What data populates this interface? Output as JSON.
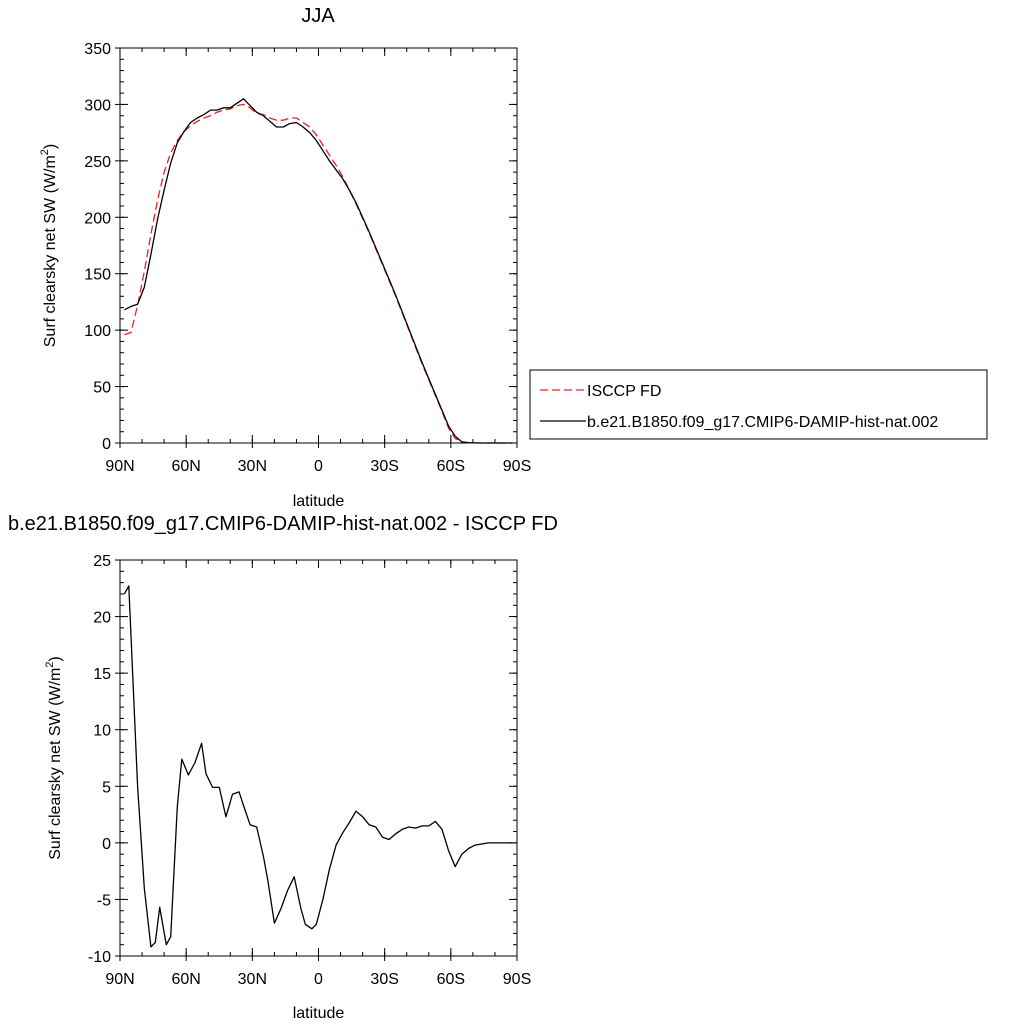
{
  "chart_data": [
    {
      "type": "line",
      "title": "JJA",
      "xlabel": "latitude",
      "ylabel": "Surf clearsky net SW (W/m",
      "ylabel_sup": "2",
      "ylabel_close": ")",
      "xlim": [
        90,
        -90
      ],
      "ylim": [
        0,
        350
      ],
      "xticks": [
        90,
        60,
        30,
        0,
        -30,
        -60,
        -90
      ],
      "xtick_labels": [
        "90N",
        "60N",
        "30N",
        "0",
        "30S",
        "60S",
        "90S"
      ],
      "yticks": [
        0,
        50,
        100,
        150,
        200,
        250,
        300,
        350
      ],
      "ytick_labels": [
        "0",
        "50",
        "100",
        "150",
        "200",
        "250",
        "300",
        "350"
      ],
      "legend_position": "right",
      "series": [
        {
          "name": "ISCCP FD",
          "color": "#e8202a",
          "dash": "dashed",
          "x": [
            88,
            85,
            82,
            79,
            76,
            73,
            70,
            67,
            64,
            61,
            58,
            55,
            52,
            49,
            46,
            43,
            40,
            37,
            34,
            31,
            28,
            25,
            22,
            19,
            16,
            13,
            10,
            7,
            4,
            1,
            -2,
            -5,
            -8,
            -11,
            -14,
            -17,
            -20,
            -23,
            -26,
            -29,
            -32,
            -35,
            -38,
            -41,
            -44,
            -47,
            -50,
            -53,
            -56,
            -59,
            -62,
            -65,
            -68,
            -71,
            -74,
            -77,
            -80,
            -83,
            -86,
            -88
          ],
          "y": [
            96,
            98,
            122,
            152,
            185,
            215,
            240,
            257,
            268,
            276,
            281,
            285,
            288,
            290,
            293,
            295,
            296,
            299,
            300,
            297,
            292,
            291,
            288,
            286,
            286,
            288,
            288,
            284,
            280,
            273,
            264,
            255,
            246,
            236,
            224,
            212,
            199,
            186,
            172,
            158,
            144,
            130,
            115,
            100,
            85,
            70,
            56,
            42,
            28,
            13,
            4,
            1,
            0.3,
            0.1,
            0,
            0,
            0,
            0,
            0,
            0
          ]
        },
        {
          "name": "b.e21.B1850.f09_g17.CMIP6-DAMIP-hist-nat.002",
          "color": "#000000",
          "dash": "solid",
          "x": [
            88,
            85,
            82,
            79,
            76,
            73,
            70,
            67,
            64,
            61,
            58,
            55,
            52,
            49,
            46,
            43,
            40,
            37,
            34,
            31,
            28,
            25,
            22,
            19,
            16,
            13,
            10,
            7,
            4,
            1,
            -2,
            -5,
            -8,
            -11,
            -14,
            -17,
            -20,
            -23,
            -26,
            -29,
            -32,
            -35,
            -38,
            -41,
            -44,
            -47,
            -50,
            -53,
            -56,
            -59,
            -62,
            -65,
            -68,
            -71,
            -74,
            -77,
            -80,
            -83,
            -86,
            -88
          ],
          "y": [
            118,
            121,
            123,
            138,
            167,
            198,
            224,
            248,
            266,
            276,
            284,
            288,
            291,
            295,
            295,
            297,
            297,
            301,
            305,
            299,
            293,
            290,
            285,
            280,
            280,
            283,
            284,
            280,
            275,
            268,
            259,
            250,
            242,
            234,
            224,
            213,
            200,
            187,
            173,
            159,
            145,
            131,
            116,
            101,
            86,
            71,
            57,
            43,
            29,
            15,
            6,
            1,
            0.3,
            0.1,
            0,
            0,
            0,
            0,
            0,
            0
          ]
        }
      ]
    },
    {
      "type": "line",
      "title": "b.e21.B1850.f09_g17.CMIP6-DAMIP-hist-nat.002 - ISCCP FD",
      "xlabel": "latitude",
      "ylabel": "Surf clearsky net SW (W/m",
      "ylabel_sup": "2",
      "ylabel_close": ")",
      "xlim": [
        90,
        -90
      ],
      "ylim": [
        -10,
        25
      ],
      "xticks": [
        90,
        60,
        30,
        0,
        -30,
        -60,
        -90
      ],
      "xtick_labels": [
        "90N",
        "60N",
        "30N",
        "0",
        "30S",
        "60S",
        "90S"
      ],
      "yticks": [
        -10,
        -5,
        0,
        5,
        10,
        15,
        20,
        25
      ],
      "ytick_labels": [
        "-10",
        "-5",
        "0",
        "5",
        "10",
        "15",
        "20",
        "25"
      ],
      "series": [
        {
          "color": "#000000",
          "dash": "solid",
          "x": [
            88,
            86,
            82,
            79,
            76,
            74,
            72,
            69,
            67,
            64,
            62,
            59,
            56,
            53,
            51,
            48,
            45,
            42,
            39,
            36,
            34,
            31,
            28,
            25,
            23,
            20,
            17,
            14,
            11,
            8,
            6,
            3,
            1,
            -2,
            -5,
            -8,
            -11,
            -14,
            -17,
            -20,
            -23,
            -26,
            -29,
            -32,
            -35,
            -38,
            -41,
            -44,
            -47,
            -50,
            -53,
            -56,
            -59,
            -62,
            -65,
            -68,
            -71,
            -74,
            -77,
            -80,
            -83,
            -86,
            -88
          ],
          "y": [
            22,
            22.7,
            5,
            -4,
            -9.2,
            -8.8,
            -5.7,
            -9,
            -8.3,
            3.2,
            7.4,
            6,
            7.1,
            8.8,
            6.1,
            4.9,
            4.9,
            2.3,
            4.3,
            4.5,
            3.3,
            1.6,
            1.4,
            -1.2,
            -3.3,
            -7.1,
            -5.8,
            -4.2,
            -3,
            -5.8,
            -7.2,
            -7.6,
            -7.2,
            -5,
            -2.3,
            -0.2,
            0.9,
            1.8,
            2.8,
            2.3,
            1.6,
            1.4,
            0.5,
            0.3,
            0.8,
            1.2,
            1.4,
            1.3,
            1.5,
            1.5,
            1.9,
            1.2,
            -0.7,
            -2.1,
            -1,
            -0.5,
            -0.2,
            -0.1,
            0,
            0,
            0,
            0,
            0
          ]
        }
      ]
    }
  ]
}
